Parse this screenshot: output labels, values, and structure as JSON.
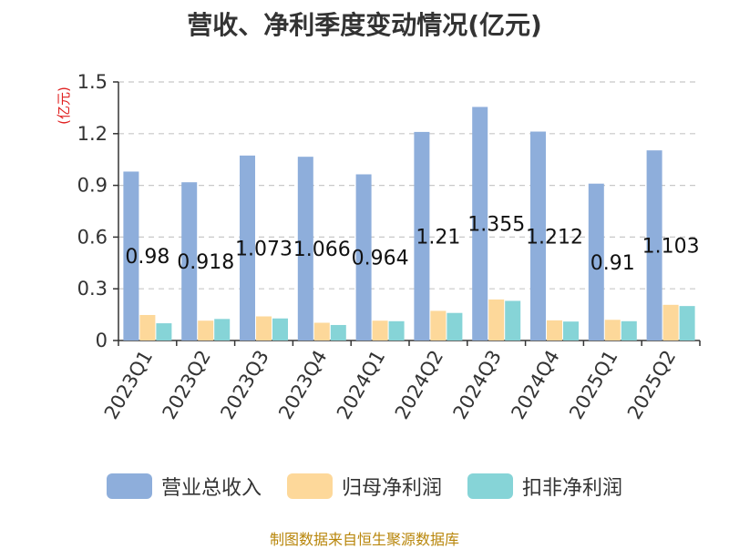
{
  "source": "制图数据来自恒生聚源数据库",
  "chart_data": {
    "type": "bar",
    "title": "营收、净利季度变动情况(亿元)",
    "ylabel": "(亿元)",
    "xlabel": "",
    "ylim": [
      0,
      1.5
    ],
    "yticks": [
      "0",
      "0.3",
      "0.6",
      "0.9",
      "1.2",
      "1.5"
    ],
    "grid": true,
    "legend_position": "bottom",
    "categories": [
      "2023Q1",
      "2023Q2",
      "2023Q3",
      "2023Q4",
      "2024Q1",
      "2024Q2",
      "2024Q3",
      "2024Q4",
      "2025Q1",
      "2025Q2"
    ],
    "series": [
      {
        "name": "营业总收入",
        "color": "#8eaedb",
        "values": [
          0.98,
          0.918,
          1.073,
          1.066,
          0.964,
          1.21,
          1.355,
          1.212,
          0.91,
          1.103
        ],
        "labels": [
          "0.98",
          "0.918",
          "1.073",
          "1.066",
          "0.964",
          "1.21",
          "1.355",
          "1.212",
          "0.91",
          "1.103"
        ]
      },
      {
        "name": "归母净利润",
        "color": "#fdd89a",
        "values": [
          0.148,
          0.115,
          0.14,
          0.103,
          0.115,
          0.172,
          0.238,
          0.117,
          0.12,
          0.207
        ]
      },
      {
        "name": "扣非净利润",
        "color": "#86d4d7",
        "values": [
          0.1,
          0.125,
          0.128,
          0.09,
          0.112,
          0.16,
          0.23,
          0.11,
          0.112,
          0.2
        ]
      }
    ]
  }
}
